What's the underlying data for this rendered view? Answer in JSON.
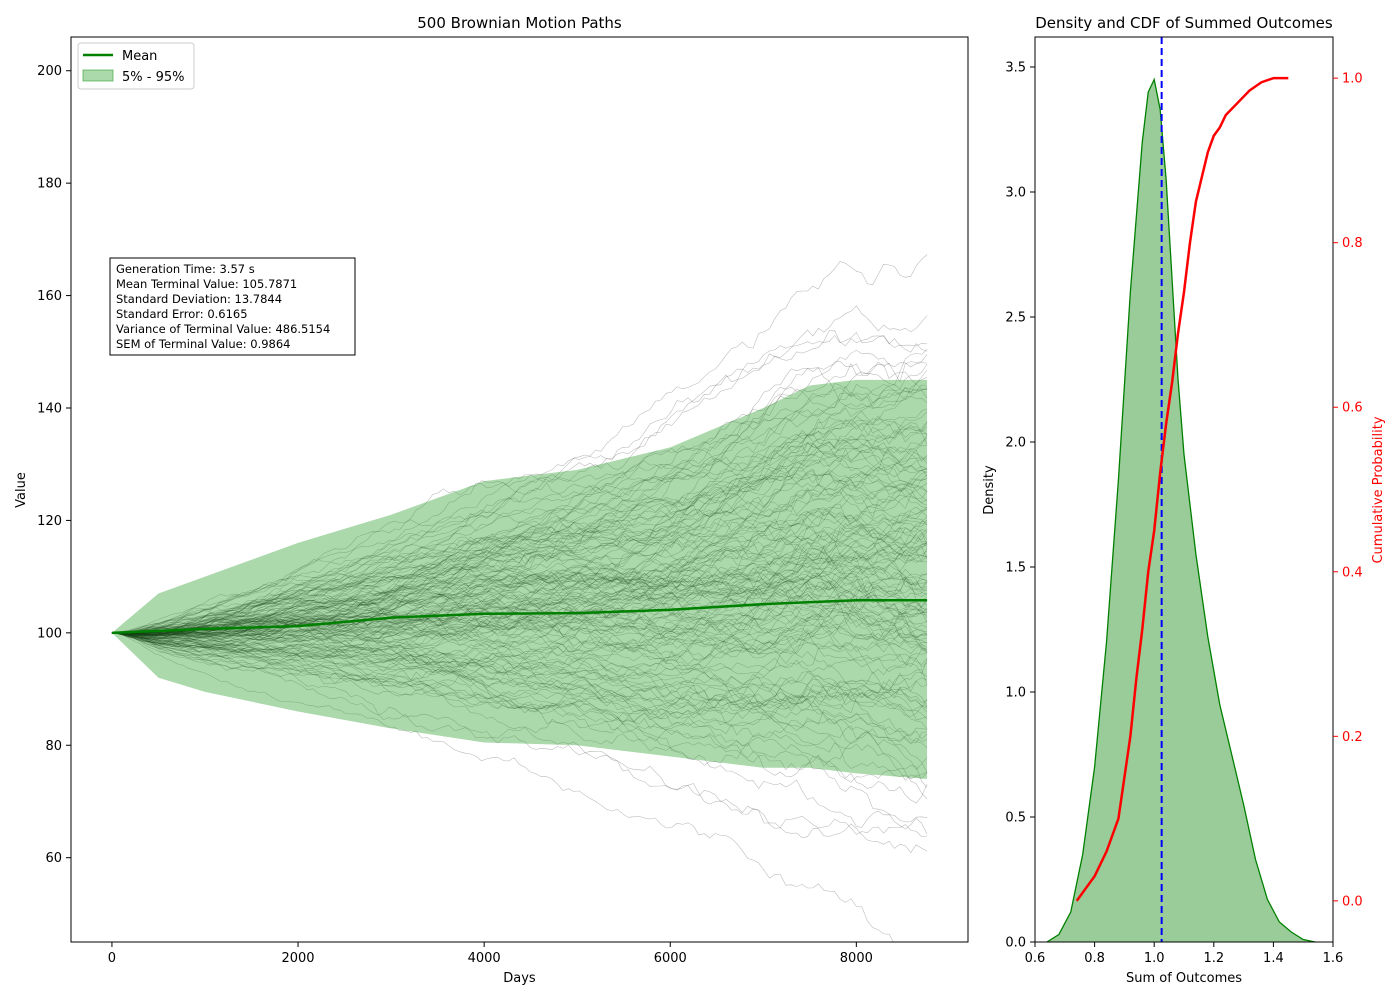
{
  "chart_data": [
    {
      "type": "line",
      "title": "500 Brownian Motion Paths",
      "xlabel": "Days",
      "ylabel": "Value",
      "xlim": [
        -440,
        9200
      ],
      "ylim": [
        45,
        206
      ],
      "xticks": [
        0,
        2000,
        4000,
        6000,
        8000
      ],
      "yticks": [
        60,
        80,
        100,
        120,
        140,
        160,
        180,
        200
      ],
      "xtick_labels": [
        "0",
        "2000",
        "4000",
        "6000",
        "8000"
      ],
      "ytick_labels": [
        "60",
        "80",
        "100",
        "120",
        "140",
        "160",
        "180",
        "200"
      ],
      "n_paths": 500,
      "x_max": 8760,
      "start_value": 100,
      "paths_color": "#000000",
      "legend": {
        "location": "upper left",
        "entries": [
          {
            "label": "Mean",
            "color": "#008000",
            "kind": "line"
          },
          {
            "label": "5% - 95%",
            "color": "#2ca02c",
            "kind": "band"
          }
        ]
      },
      "series": [
        {
          "name": "Mean",
          "color": "#008000",
          "x": [
            0,
            1000,
            2000,
            3000,
            4000,
            5000,
            6000,
            7000,
            8000,
            8760
          ],
          "values": [
            100,
            100.7,
            101.2,
            102.7,
            103.4,
            103.5,
            104.1,
            105.1,
            105.8,
            105.8
          ]
        },
        {
          "name": "5% - 95%",
          "color": "#2ca02c",
          "x": [
            0,
            500,
            1000,
            2000,
            3000,
            4000,
            5000,
            6000,
            7000,
            7500,
            8000,
            8760
          ],
          "upper": [
            100,
            107,
            110,
            116,
            121,
            127,
            129,
            133,
            140,
            144,
            145,
            145
          ],
          "lower": [
            100,
            92,
            89.5,
            86,
            83,
            80.5,
            80,
            78,
            76,
            76,
            75,
            74
          ]
        }
      ],
      "annotation": {
        "lines": [
          "Generation Time: 3.57 s",
          "Mean Terminal Value: 105.7871",
          "Standard Deviation: 13.7844",
          "Standard Error: 0.6165",
          "Variance of Terminal Value: 486.5154",
          "SEM of Terminal Value: 0.9864"
        ]
      }
    },
    {
      "type": "area",
      "title": "Density and CDF of Summed Outcomes",
      "xlabel": "Sum of Outcomes",
      "ylabel": "Density",
      "y2label": "Cumulative Probability",
      "xlim": [
        0.6,
        1.6
      ],
      "ylim": [
        0,
        3.62
      ],
      "y2lim": [
        -0.05,
        1.05
      ],
      "xticks": [
        0.6,
        0.8,
        1.0,
        1.2,
        1.4,
        1.6
      ],
      "yticks": [
        0,
        0.5,
        1.0,
        1.5,
        2.0,
        2.5,
        3.0,
        3.5
      ],
      "y2ticks": [
        0,
        0.2,
        0.4,
        0.6,
        0.8,
        1.0
      ],
      "xtick_labels": [
        "0.6",
        "0.8",
        "1.0",
        "1.2",
        "1.4",
        "1.6"
      ],
      "ytick_labels": [
        "0.0",
        "0.5",
        "1.0",
        "1.5",
        "2.0",
        "2.5",
        "3.0",
        "3.5"
      ],
      "y2tick_labels": [
        "0.0",
        "0.2",
        "0.4",
        "0.6",
        "0.8",
        "1.0"
      ],
      "mean_line": 1.025,
      "mean_line_color": "#0000ff",
      "density": {
        "name": "Density",
        "color": "#008000",
        "fill": "#99cc99",
        "x": [
          0.64,
          0.68,
          0.72,
          0.76,
          0.8,
          0.84,
          0.88,
          0.92,
          0.96,
          0.98,
          1.0,
          1.02,
          1.04,
          1.06,
          1.08,
          1.1,
          1.14,
          1.18,
          1.22,
          1.26,
          1.3,
          1.34,
          1.38,
          1.42,
          1.46,
          1.5,
          1.54
        ],
        "values": [
          0.0,
          0.03,
          0.12,
          0.35,
          0.7,
          1.2,
          1.85,
          2.6,
          3.2,
          3.4,
          3.45,
          3.33,
          3.05,
          2.65,
          2.25,
          1.95,
          1.55,
          1.22,
          0.95,
          0.75,
          0.55,
          0.33,
          0.17,
          0.08,
          0.04,
          0.01,
          0.0
        ]
      },
      "cdf": {
        "name": "CDF",
        "color": "#ff0000",
        "x": [
          0.74,
          0.76,
          0.8,
          0.84,
          0.88,
          0.9,
          0.92,
          0.94,
          0.96,
          0.98,
          1.0,
          1.02,
          1.04,
          1.06,
          1.08,
          1.1,
          1.12,
          1.14,
          1.16,
          1.18,
          1.2,
          1.22,
          1.24,
          1.28,
          1.32,
          1.36,
          1.4,
          1.45
        ],
        "values": [
          0.0,
          0.01,
          0.03,
          0.06,
          0.1,
          0.15,
          0.2,
          0.27,
          0.33,
          0.4,
          0.45,
          0.52,
          0.58,
          0.63,
          0.69,
          0.74,
          0.8,
          0.85,
          0.88,
          0.91,
          0.93,
          0.94,
          0.955,
          0.97,
          0.985,
          0.995,
          1.0,
          1.0
        ]
      }
    }
  ]
}
